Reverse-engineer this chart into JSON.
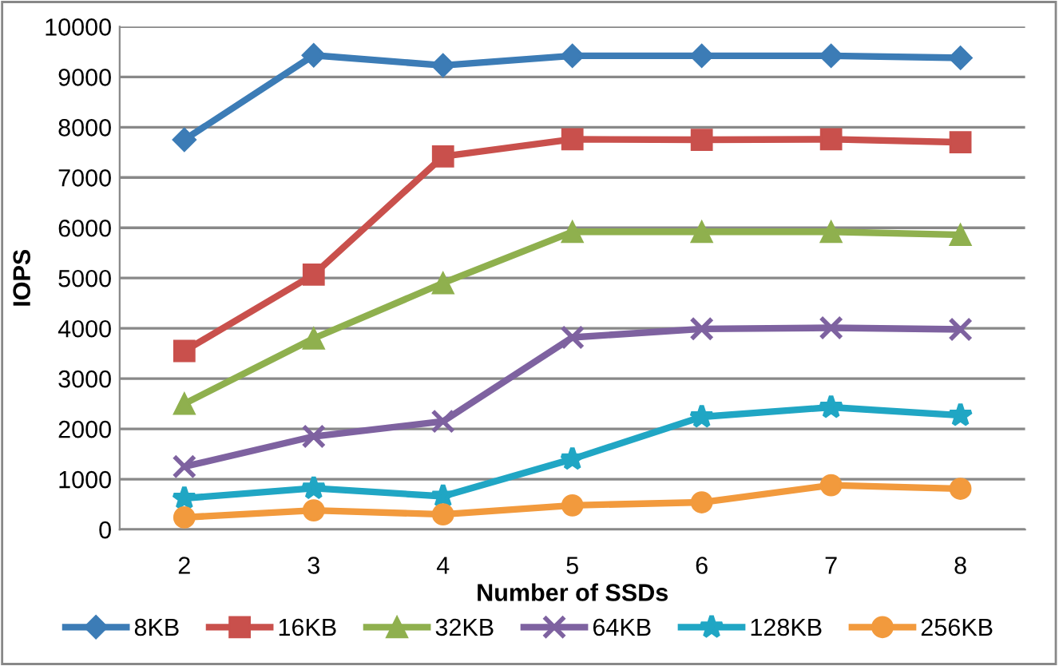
{
  "chart_data": {
    "type": "line",
    "xlabel": "Number of SSDs",
    "ylabel": "IOPS",
    "categories": [
      "2",
      "3",
      "4",
      "5",
      "6",
      "7",
      "8"
    ],
    "ylim": [
      0,
      10000
    ],
    "yticks": [
      0,
      1000,
      2000,
      3000,
      4000,
      5000,
      6000,
      7000,
      8000,
      9000,
      10000
    ],
    "grid": "y",
    "legend": "bottom",
    "line_style": "solid",
    "series": [
      {
        "name": "8KB",
        "color": "#3c7cb6",
        "marker": "diamond",
        "values": [
          7750,
          9430,
          9230,
          9420,
          9420,
          9420,
          9380
        ]
      },
      {
        "name": "16KB",
        "color": "#c9504c",
        "marker": "square",
        "values": [
          3550,
          5070,
          7420,
          7760,
          7750,
          7760,
          7700
        ]
      },
      {
        "name": "32KB",
        "color": "#8fb04e",
        "marker": "triangle",
        "values": [
          2500,
          3800,
          4900,
          5920,
          5920,
          5920,
          5860
        ]
      },
      {
        "name": "64KB",
        "color": "#7e62a0",
        "marker": "cross",
        "values": [
          1250,
          1850,
          2150,
          3820,
          3990,
          4010,
          3980
        ]
      },
      {
        "name": "128KB",
        "color": "#20a6c4",
        "marker": "star",
        "values": [
          620,
          820,
          660,
          1400,
          2240,
          2430,
          2270
        ]
      },
      {
        "name": "256KB",
        "color": "#f29a3d",
        "marker": "circle",
        "values": [
          240,
          380,
          300,
          480,
          540,
          880,
          810
        ]
      }
    ]
  }
}
